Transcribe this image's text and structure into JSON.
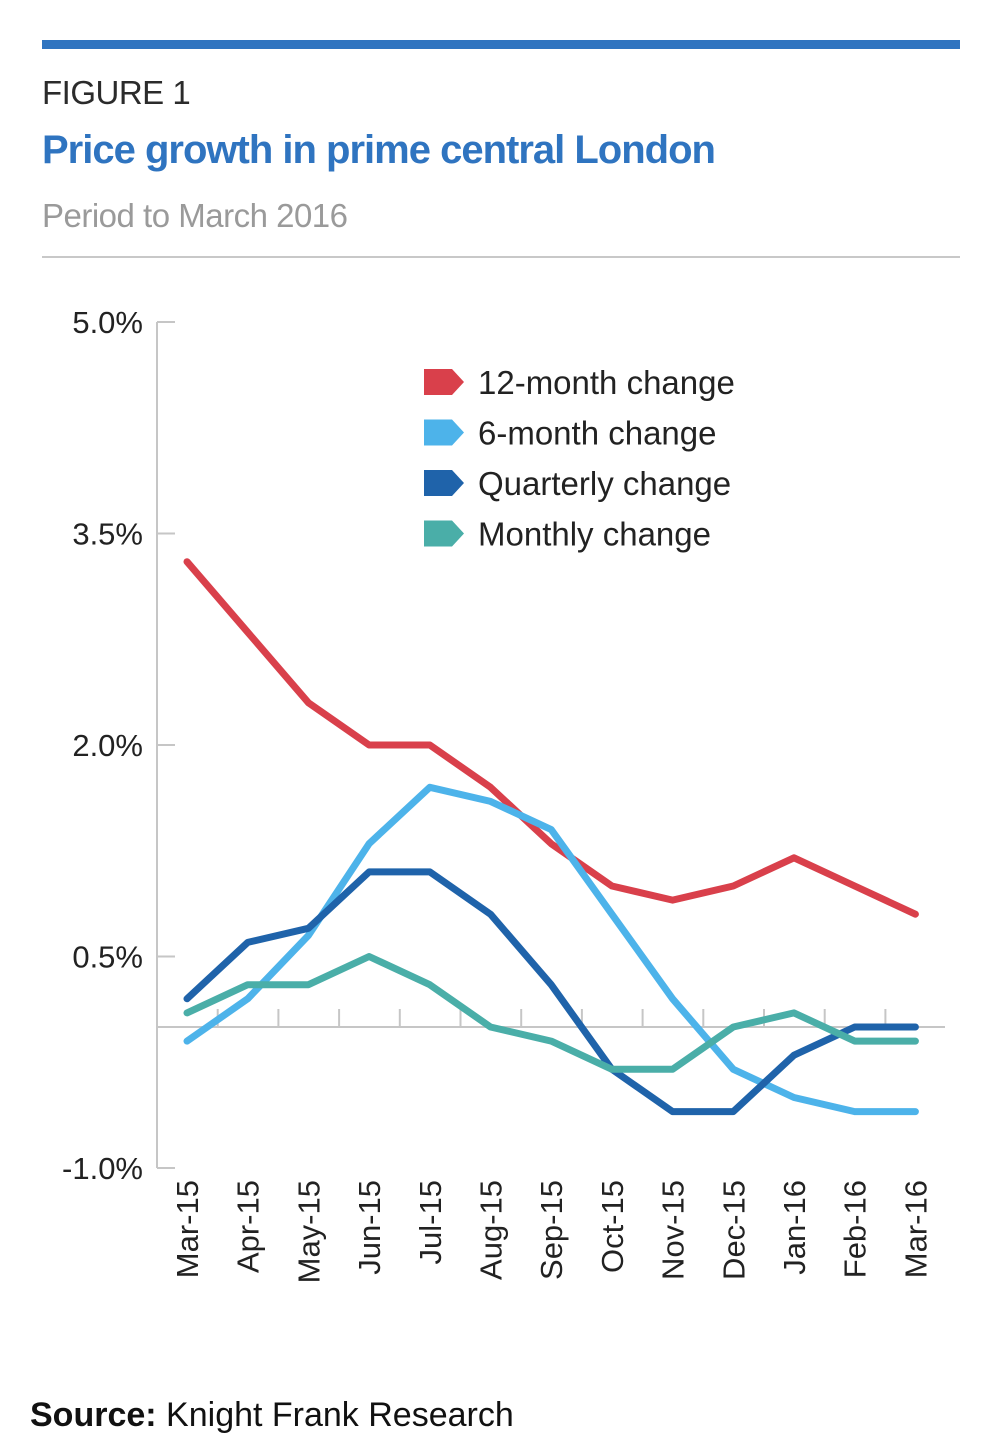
{
  "header": {
    "figure_label": "FIGURE 1",
    "title": "Price growth in prime central London",
    "subtitle": "Period to March 2016"
  },
  "footer": {
    "source_label": "Source:",
    "source_text": "Knight Frank Research"
  },
  "colors": {
    "accent": "#2f74c0",
    "axis": "#c6c6c6"
  },
  "chart_data": {
    "type": "line",
    "categories": [
      "Mar-15",
      "Apr-15",
      "May-15",
      "Jun-15",
      "Jul-15",
      "Aug-15",
      "Sep-15",
      "Oct-15",
      "Nov-15",
      "Dec-15",
      "Jan-16",
      "Feb-16",
      "Mar-16"
    ],
    "yticks": [
      5.0,
      3.5,
      2.0,
      0.5,
      -1.0
    ],
    "ytick_labels": [
      "5.0%",
      "3.5%",
      "2.0%",
      "0.5%",
      "-1.0%"
    ],
    "ylim": [
      -1.0,
      5.0
    ],
    "grid": false,
    "legend_position": "top-right",
    "series": [
      {
        "name": "12-month change",
        "color": "#d9404b",
        "values": [
          3.3,
          2.8,
          2.3,
          2.0,
          2.0,
          1.7,
          1.3,
          1.0,
          0.9,
          1.0,
          1.2,
          1.0,
          0.8
        ]
      },
      {
        "name": "6-month change",
        "color": "#4db3ea",
        "values": [
          -0.1,
          0.2,
          0.65,
          1.3,
          1.7,
          1.6,
          1.4,
          0.8,
          0.2,
          -0.3,
          -0.5,
          -0.6,
          -0.6
        ]
      },
      {
        "name": "Quarterly change",
        "color": "#1f63aa",
        "values": [
          0.2,
          0.6,
          0.7,
          1.1,
          1.1,
          0.8,
          0.3,
          -0.3,
          -0.6,
          -0.6,
          -0.2,
          0.0,
          0.0
        ]
      },
      {
        "name": "Monthly change",
        "color": "#4aaea8",
        "values": [
          0.1,
          0.3,
          0.3,
          0.5,
          0.3,
          0.0,
          -0.1,
          -0.3,
          -0.3,
          0.0,
          0.1,
          -0.1,
          -0.1
        ]
      }
    ]
  }
}
